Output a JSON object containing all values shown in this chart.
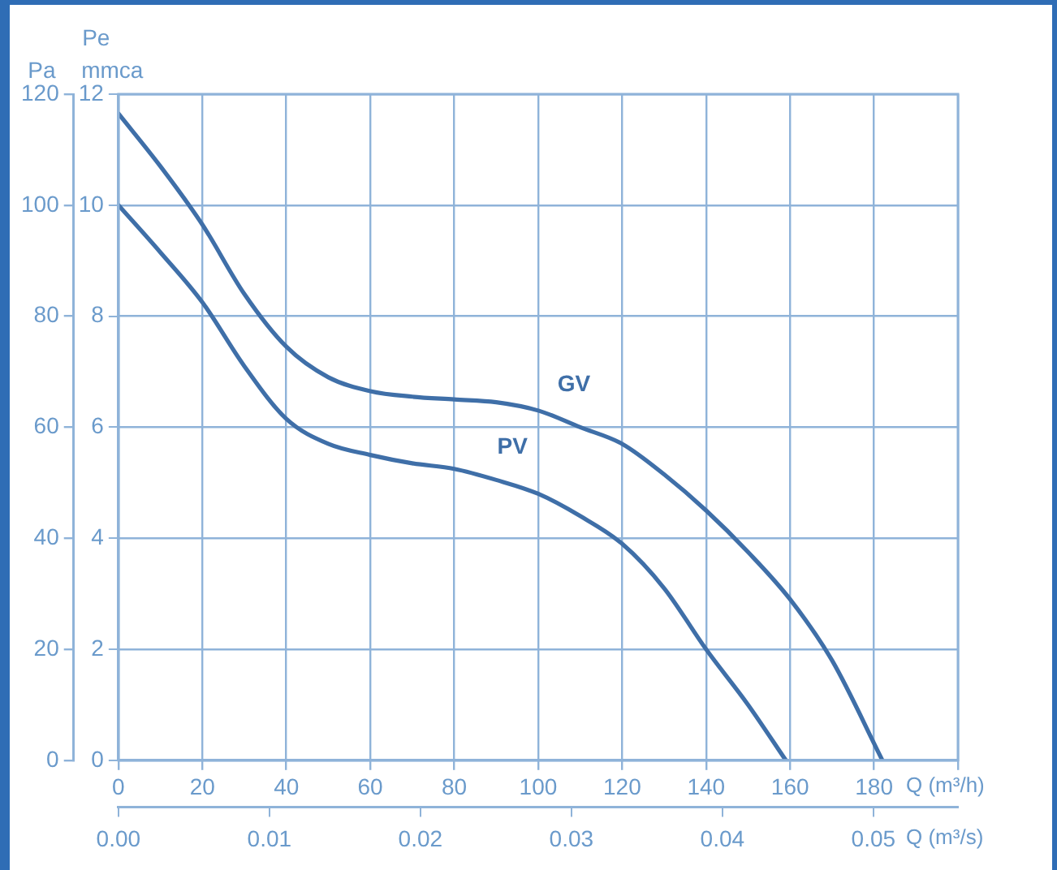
{
  "chart_data": {
    "type": "line",
    "xlabel": "Q (m³/h)",
    "x2label": "Q (m³/s)",
    "ylabel": "Pa",
    "y2label": "mmca",
    "annotations": [
      "Pe"
    ],
    "xlim": [
      0,
      200
    ],
    "xticks": [
      0,
      20,
      40,
      60,
      80,
      100,
      120,
      140,
      160,
      180,
      {
        "value": 200,
        "label": null
      }
    ],
    "x2lim": [
      0,
      0.0556
    ],
    "x2ticks": [
      {
        "value": 0,
        "label": "0.00"
      },
      {
        "value": 0.01,
        "label": "0.01"
      },
      {
        "value": 0.02,
        "label": "0.02"
      },
      {
        "value": 0.03,
        "label": "0.03"
      },
      {
        "value": 0.04,
        "label": "0.04"
      },
      {
        "value": 0.05,
        "label": "0.05"
      }
    ],
    "ylim": [
      0,
      120
    ],
    "yticks": [
      0,
      20,
      40,
      60,
      80,
      100,
      120
    ],
    "y2lim": [
      0,
      12
    ],
    "y2ticks": [
      0,
      2,
      4,
      6,
      8,
      10,
      12
    ],
    "grid": true,
    "legend": false,
    "marker": "none",
    "line_style": "solid",
    "series": [
      {
        "name": "GV",
        "color": "#3f6fa8",
        "x": [
          0,
          10,
          20,
          30,
          40,
          50,
          60,
          70,
          80,
          90,
          100,
          110,
          120,
          130,
          140,
          150,
          160,
          170,
          182
        ],
        "values": [
          116.5,
          107,
          96.5,
          84,
          74.5,
          69,
          66.5,
          65.5,
          65,
          64.5,
          63,
          60,
          57,
          51.5,
          45,
          37.5,
          29,
          18,
          0
        ]
      },
      {
        "name": "PV",
        "color": "#3f6fa8",
        "x": [
          0,
          10,
          20,
          30,
          40,
          50,
          60,
          70,
          80,
          90,
          100,
          110,
          120,
          130,
          140,
          150,
          159
        ],
        "values": [
          100,
          91.5,
          82.5,
          71,
          61.5,
          57,
          55,
          53.5,
          52.5,
          50.5,
          48,
          44,
          39,
          31,
          20,
          10,
          0
        ]
      }
    ]
  }
}
